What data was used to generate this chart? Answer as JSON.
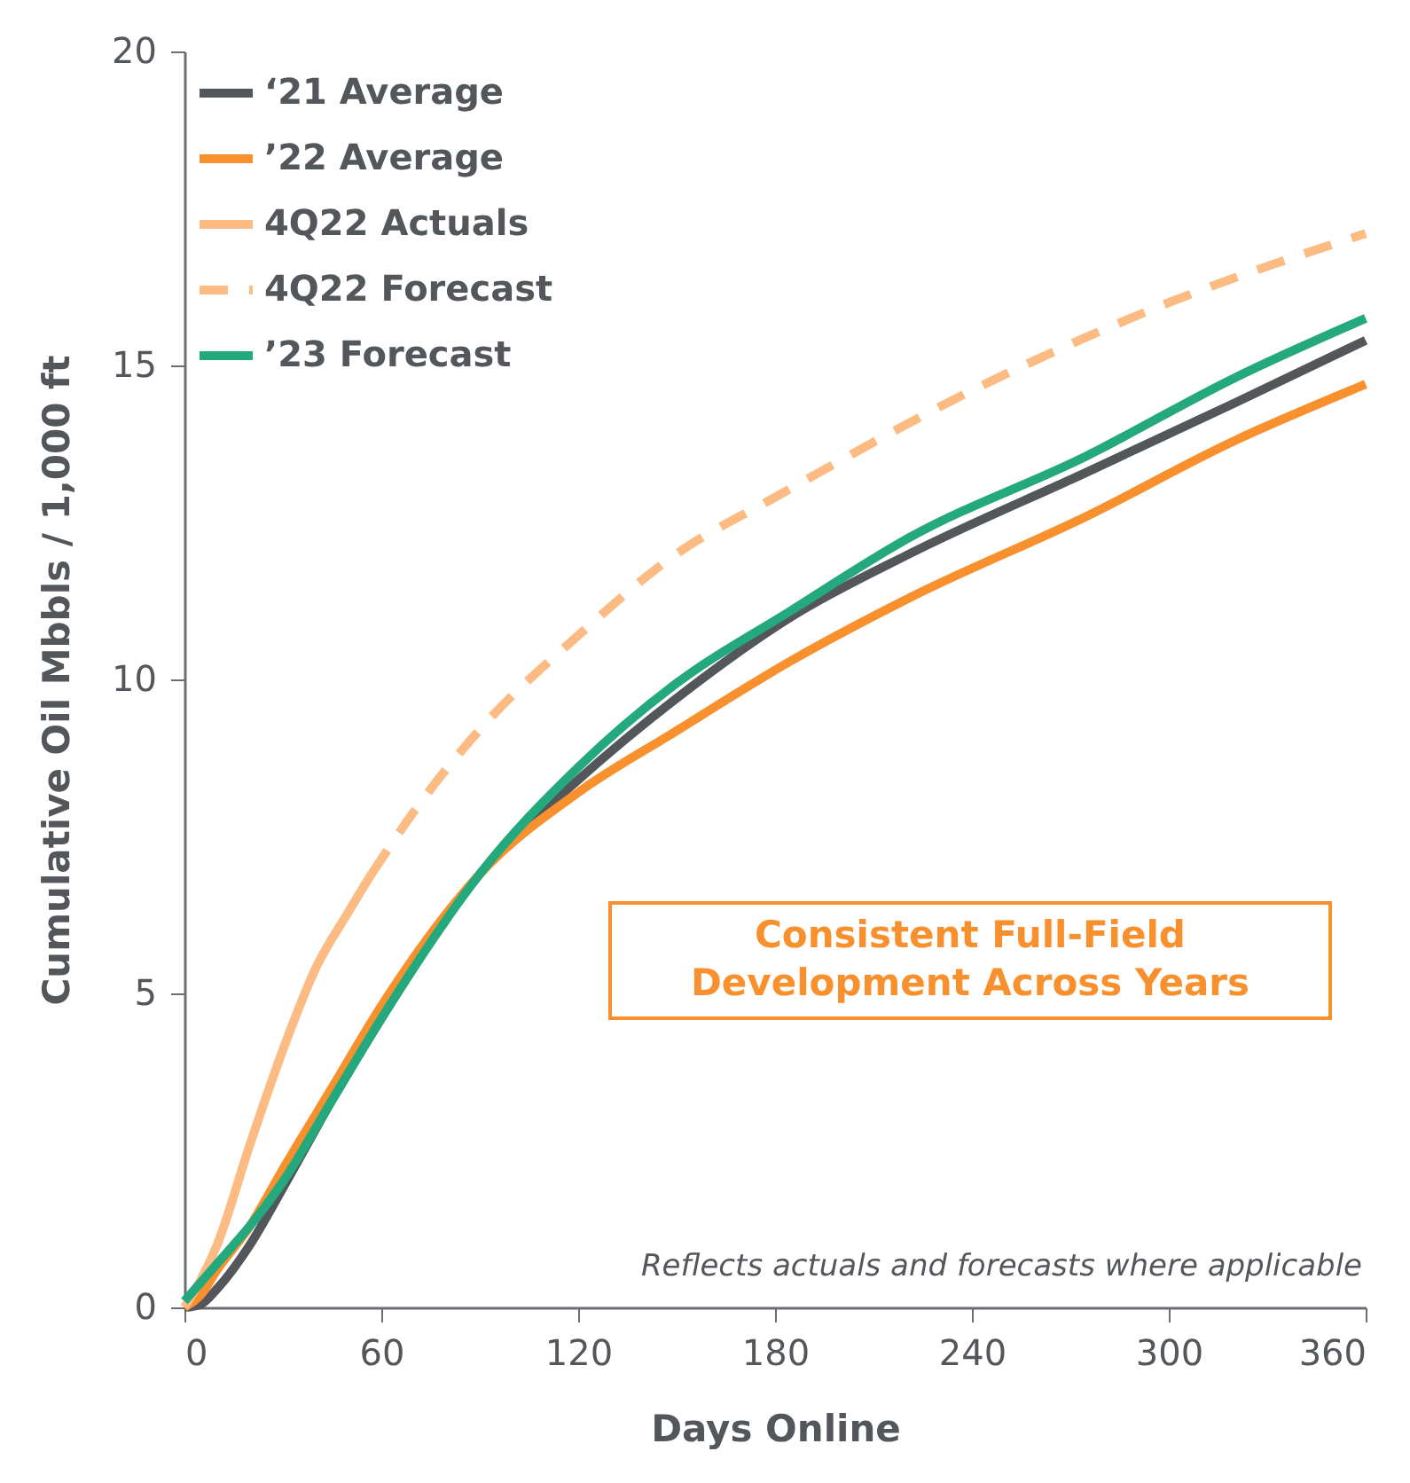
{
  "chart_data": {
    "type": "line",
    "xlabel": "Days Online",
    "ylabel": "Cumulative Oil Mbbls / 1,000 ft",
    "xlim": [
      0,
      360
    ],
    "xticks": [
      0,
      60,
      120,
      180,
      240,
      300,
      360
    ],
    "ylim": [
      0,
      20
    ],
    "yticks": [
      0,
      5,
      10,
      15,
      20
    ],
    "grid": false,
    "legend": "top left",
    "marker": "none",
    "series": [
      {
        "name": "‘21 Average",
        "color": "#53565a",
        "line_style": "solid",
        "x": [
          0,
          5,
          10,
          20,
          30,
          45,
          60,
          90,
          120,
          150,
          185,
          221,
          275,
          320,
          360
        ],
        "values": [
          0,
          0.05,
          0.3,
          1.0,
          1.9,
          3.3,
          4.6,
          6.9,
          8.4,
          9.7,
          11.0,
          12.0,
          13.3,
          14.4,
          15.4
        ]
      },
      {
        "name": "’22 Average",
        "color": "#f7902d",
        "line_style": "solid",
        "x": [
          0,
          5,
          10,
          20,
          30,
          45,
          60,
          90,
          120,
          149,
          185,
          221,
          275,
          320,
          360
        ],
        "values": [
          0,
          0.2,
          0.6,
          1.3,
          2.2,
          3.5,
          4.8,
          6.9,
          8.2,
          9.15,
          10.3,
          11.3,
          12.6,
          13.8,
          14.7
        ]
      },
      {
        "name": "4Q22 Actuals",
        "color": "#fbbb82",
        "line_style": "solid",
        "x": [
          0,
          10,
          20,
          30,
          40,
          50,
          57
        ],
        "values": [
          0,
          1.0,
          2.6,
          4.1,
          5.4,
          6.3,
          6.9
        ]
      },
      {
        "name": "4Q22 Forecast",
        "color": "#fbbb82",
        "line_style": "dashed",
        "x": [
          57,
          70,
          90,
          120,
          150,
          180,
          240,
          300,
          360
        ],
        "values": [
          6.9,
          7.9,
          9.2,
          10.7,
          12.0,
          12.9,
          14.6,
          16.0,
          17.1
        ]
      },
      {
        "name": "’23 Forecast",
        "color": "#24a97e",
        "line_style": "solid",
        "x": [
          0,
          10,
          20,
          30,
          45,
          60,
          90,
          120,
          149,
          185,
          221,
          275,
          320,
          360
        ],
        "values": [
          0.1,
          0.7,
          1.3,
          2.0,
          3.3,
          4.6,
          6.9,
          8.6,
          9.9,
          11.1,
          12.26,
          13.56,
          14.8,
          15.75
        ]
      }
    ],
    "annotations": [
      "Consistent Full-Field Development Across Years",
      "Reflects actuals and forecasts where applicable"
    ]
  }
}
